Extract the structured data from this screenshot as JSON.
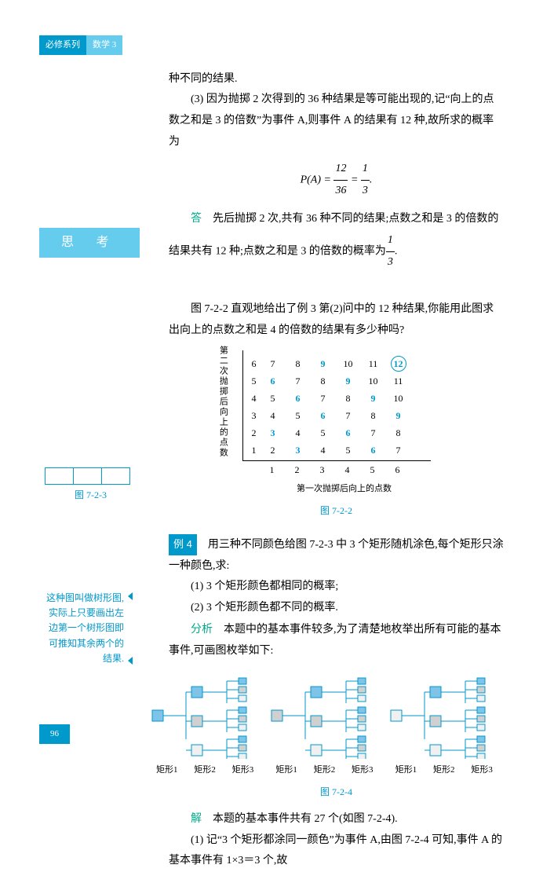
{
  "hdr": {
    "a": "必修系列",
    "b": "数学 3"
  },
  "t1": "种不同的结果.",
  "t2": "(3) 因为抛掷 2 次得到的 36 种结果是等可能出现的,记“向上的点数之和是 3 的倍数”为事件 A,则事件 A 的结果有 12 种,故所求的概率为",
  "f1": {
    "l": "P(A) =",
    "n1": "12",
    "d1": "36",
    "n2": "1",
    "d2": "3",
    "end": "."
  },
  "a1": "答",
  "a2": "先后抛掷 2 次,共有 36 种不同的结果;点数之和是 3 的倍数的",
  "a3": "结果共有 12 种;点数之和是 3 的倍数的概率为",
  "a3n": "1",
  "a3d": "3",
  "a3e": ".",
  "think": "思 考",
  "th1": "图 7-2-2 直观地给出了例 3 第(2)问中的 12 种结果,你能用此图求出向上的点数之和是 4 的倍数的结果有多少种吗?",
  "chart": {
    "yt": "第二次抛掷后向上的点数",
    "xt": "第一次抛掷后向上的点数",
    "rows": [
      {
        "y": "6",
        "c": [
          "7",
          "8",
          "9",
          "10",
          "11",
          "12"
        ],
        "diag": [
          2
        ],
        "circ": [
          5
        ]
      },
      {
        "y": "5",
        "c": [
          "6",
          "7",
          "8",
          "9",
          "10",
          "11"
        ],
        "diag": [
          0,
          3
        ]
      },
      {
        "y": "4",
        "c": [
          "5",
          "6",
          "7",
          "8",
          "9",
          "10"
        ],
        "diag": [
          1,
          4
        ]
      },
      {
        "y": "3",
        "c": [
          "4",
          "5",
          "6",
          "7",
          "8",
          "9"
        ],
        "diag": [
          2,
          5
        ]
      },
      {
        "y": "2",
        "c": [
          "3",
          "4",
          "5",
          "6",
          "7",
          "8"
        ],
        "diag": [
          0,
          3
        ]
      },
      {
        "y": "1",
        "c": [
          "2",
          "3",
          "4",
          "5",
          "6",
          "7"
        ],
        "diag": [
          1,
          4
        ]
      }
    ],
    "x": [
      "1",
      "2",
      "3",
      "4",
      "5",
      "6"
    ]
  },
  "fig1": "图 7-2-2",
  "fig723": "图 7-2-3",
  "ex4": "例 4",
  "ex4t": "用三种不同颜色给图 7-2-3 中 3 个矩形随机涂色,每个矩形只涂一种颜色,求:",
  "ex4a": "(1) 3 个矩形颜色都相同的概率;",
  "ex4b": "(2) 3 个矩形颜色都不同的概率.",
  "fx": "分析",
  "fxt": "本题中的基本事件较多,为了清楚地枚举出所有可能的基本事件,可画图枚举如下:",
  "note": "这种图叫做树形图,实际上只要画出左边第一个树形图即可推知其余两个的结果.",
  "tl": {
    "a": "矩形1",
    "b": "矩形2",
    "c": "矩形3"
  },
  "fig2": "图 7-2-4",
  "jie": "解",
  "jiet": "本题的基本事件共有 27 个(如图 7-2-4).",
  "j1": "(1) 记“3 个矩形都涂同一颜色”为事件 A,由图 7-2-4 可知,事件 A 的基本事件有 1×3＝3 个,故",
  "pn": "96"
}
